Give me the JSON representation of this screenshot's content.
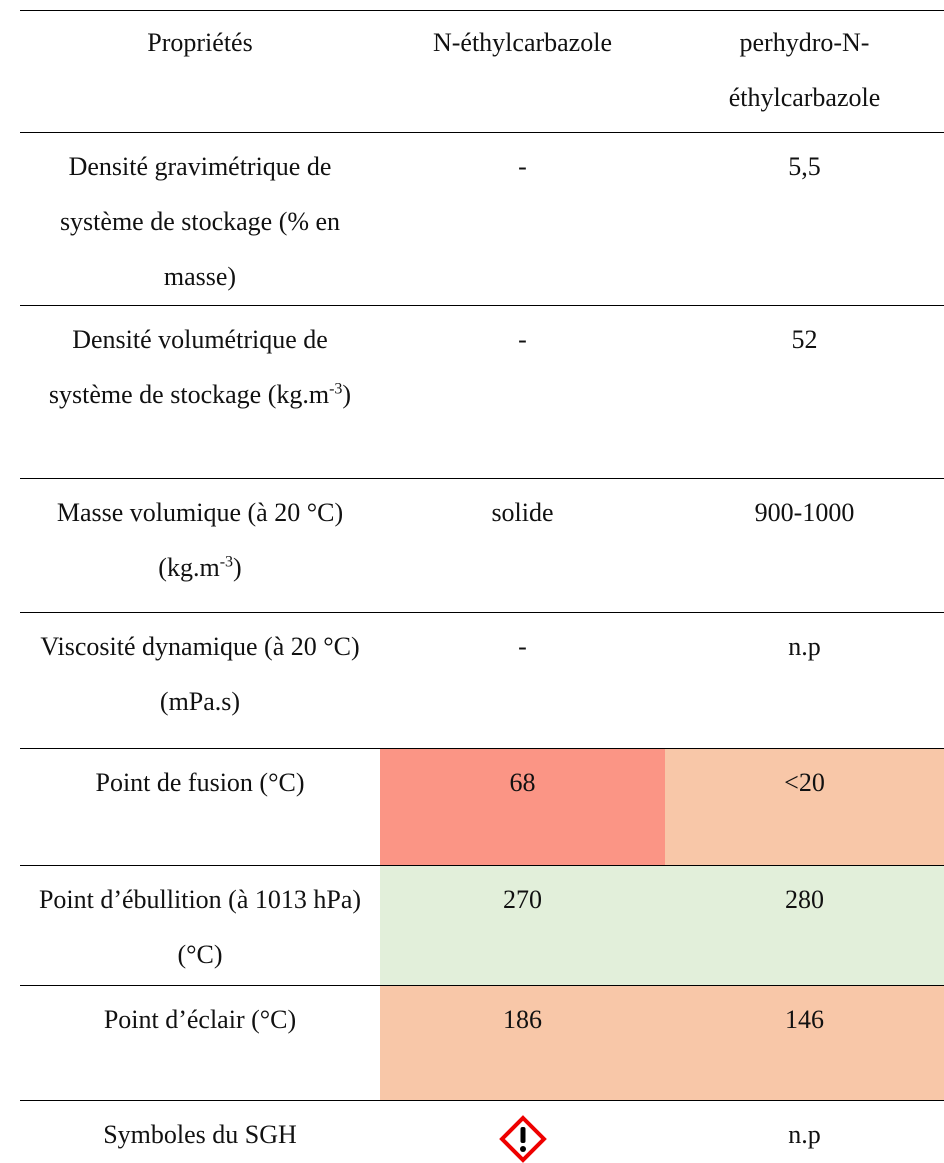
{
  "table": {
    "header": [
      "Propriétés",
      "N-éthylcarbazole",
      "perhydro-N-éthylcarbazole"
    ],
    "rows": [
      [
        {
          "text": "Densité gravimétrique de système de stockage (% en masse)"
        },
        {
          "text": "-"
        },
        {
          "text": "5,5"
        }
      ],
      [
        {
          "text": "Densité volumétrique de système de stockage (kg.m",
          "sup": "-3",
          "after": ")"
        },
        {
          "text": "-"
        },
        {
          "text": "52"
        }
      ],
      [
        {
          "text": "Masse volumique  (à 20 °C) (kg.m",
          "sup": "-3",
          "after": ")"
        },
        {
          "text": "solide"
        },
        {
          "text": "900-1000"
        }
      ],
      [
        {
          "text": "Viscosité dynamique (à 20 °C) (mPa.s)"
        },
        {
          "text": "-"
        },
        {
          "text": "n.p"
        }
      ],
      [
        {
          "text": "Point de fusion (°C)"
        },
        {
          "text": "68"
        },
        {
          "text": "<20"
        }
      ],
      [
        {
          "text": "Point d’ébullition (à 1013 hPa) (°C)"
        },
        {
          "text": "270"
        },
        {
          "text": "280"
        }
      ],
      [
        {
          "text": "Point d’éclair (°C)"
        },
        {
          "text": "186"
        },
        {
          "text": "146"
        }
      ],
      [
        {
          "text": "Symboles du SGH"
        },
        {
          "text": ""
        },
        {
          "text": "n.p"
        }
      ]
    ]
  }
}
